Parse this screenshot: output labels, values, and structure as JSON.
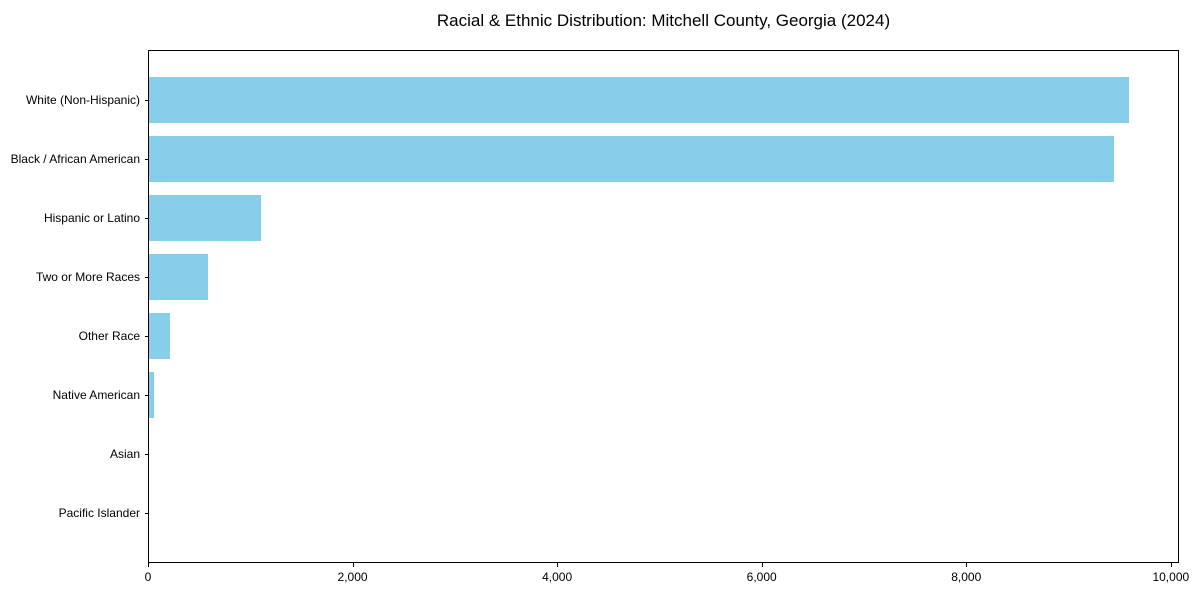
{
  "title": "Racial & Ethnic Distribution: Mitchell County, Georgia (2024)",
  "colors": {
    "bar": "#87CEEB",
    "axis": "#000000",
    "text": "#000000",
    "background": "#ffffff"
  },
  "chart_data": {
    "type": "bar",
    "orientation": "horizontal",
    "title": "Racial & Ethnic Distribution: Mitchell County, Georgia (2024)",
    "categories": [
      "White (Non-Hispanic)",
      "Black / African American",
      "Hispanic or Latino",
      "Two or More Races",
      "Other Race",
      "Native American",
      "Asian",
      "Pacific Islander"
    ],
    "values": [
      9600,
      9450,
      1100,
      580,
      210,
      50,
      0,
      0
    ],
    "xlabel": "",
    "ylabel": "",
    "xlim": [
      0,
      10080
    ],
    "xticks": [
      0,
      2000,
      4000,
      6000,
      8000,
      10000
    ],
    "xtick_labels": [
      "0",
      "2,000",
      "4,000",
      "6,000",
      "8,000",
      "10,000"
    ],
    "grid": false,
    "legend": null,
    "bar_color": "#87CEEB"
  }
}
